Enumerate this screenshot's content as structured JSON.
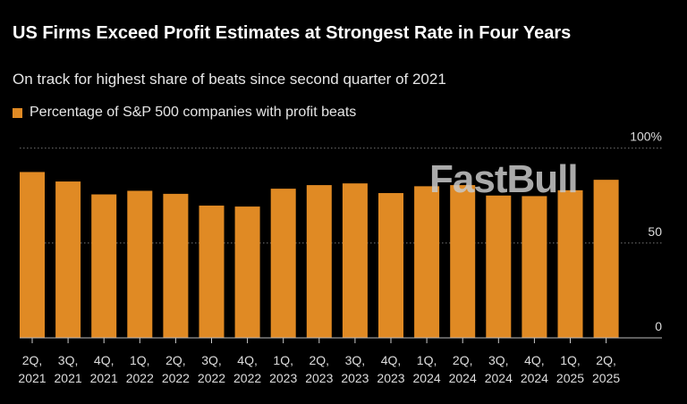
{
  "chart_data": {
    "type": "bar",
    "title": "US Firms Exceed Profit Estimates at Strongest Rate in Four Years",
    "subtitle": "On track for highest share of beats since second quarter of 2021",
    "series": [
      {
        "name": "Percentage of S&P 500 companies with profit beats",
        "values": [
          87.4,
          82.4,
          75.6,
          77.5,
          75.9,
          69.7,
          69.2,
          78.6,
          80.5,
          81.4,
          76.3,
          79.9,
          80.5,
          75.0,
          74.7,
          77.8,
          83.3
        ]
      }
    ],
    "categories": [
      "2Q, 2021",
      "3Q, 2021",
      "4Q, 2021",
      "1Q, 2022",
      "2Q, 2022",
      "3Q, 2022",
      "4Q, 2022",
      "1Q, 2023",
      "2Q, 2023",
      "3Q, 2023",
      "4Q, 2023",
      "1Q, 2024",
      "2Q, 2024",
      "3Q, 2024",
      "4Q, 2024",
      "1Q, 2025",
      "2Q, 2025"
    ],
    "ylim": [
      0,
      100
    ],
    "yticks": [
      {
        "value": 0,
        "label": "0"
      },
      {
        "value": 50,
        "label": "50"
      },
      {
        "value": 100,
        "label": "100%"
      }
    ],
    "grid": true,
    "legend_placement": "top-left",
    "colors": {
      "bar": "#e08a24",
      "background": "#000000"
    }
  },
  "watermark": "FastBull"
}
